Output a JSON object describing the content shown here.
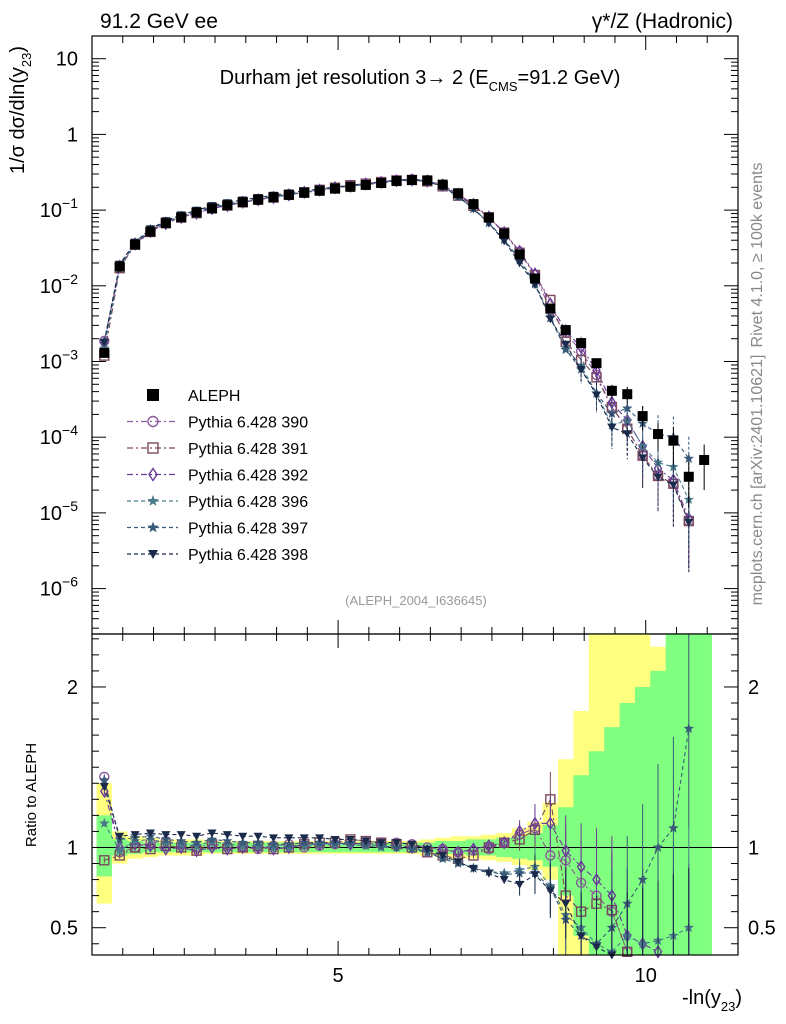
{
  "header": {
    "left": "91.2 GeV ee",
    "right": "γ*/Z (Hadronic)"
  },
  "side": {
    "top": "Rivet 4.1.0, ≥ 100k events",
    "bottom": "mcplots.cern.ch [arXiv:2401.10621]"
  },
  "chart_data": {
    "type": "scatter",
    "title": "Durham jet resolution 3→ 2 (E_CMS=91.2 GeV)",
    "title_main": "Durham jet resolution 3→ 2 (E",
    "title_sub": "CMS",
    "title_tail": "=91.2 GeV)",
    "watermark": "(ALEPH_2004_I636645)",
    "ylabel_main": "1/σ  dσ/dln(y",
    "ylabel_sub": "23",
    "ylabel_tail": ")",
    "ratio_ylabel": "Ratio to ALEPH",
    "xlabel_main": "-ln(y",
    "xlabel_sub": "23",
    "xlabel_tail": ")",
    "xlim": [
      1.0,
      11.5
    ],
    "ylim_log": [
      -6.6,
      1.3
    ],
    "ratio_ylim": [
      0.33,
      2.33
    ],
    "x_ticks": [
      {
        "v": 5,
        "label": "5"
      },
      {
        "v": 10,
        "label": "10"
      }
    ],
    "y_ticks": [
      {
        "e": 1,
        "base": "10",
        "exp": ""
      },
      {
        "e": 0,
        "base": "1",
        "exp": ""
      },
      {
        "e": -1,
        "base": "10",
        "exp": "−1"
      },
      {
        "e": -2,
        "base": "10",
        "exp": "−2"
      },
      {
        "e": -3,
        "base": "10",
        "exp": "−3"
      },
      {
        "e": -4,
        "base": "10",
        "exp": "−4"
      },
      {
        "e": -5,
        "base": "10",
        "exp": "−5"
      },
      {
        "e": -6,
        "base": "10",
        "exp": "−6"
      }
    ],
    "ratio_ticks": [
      {
        "v": 0.5,
        "label": "0.5"
      },
      {
        "v": 1,
        "label": "1"
      },
      {
        "v": 2,
        "label": "2"
      }
    ],
    "x": [
      1.2,
      1.45,
      1.7,
      1.95,
      2.2,
      2.45,
      2.7,
      2.95,
      3.2,
      3.45,
      3.7,
      3.95,
      4.2,
      4.45,
      4.7,
      4.95,
      5.2,
      5.45,
      5.7,
      5.95,
      6.2,
      6.45,
      6.7,
      6.95,
      7.2,
      7.45,
      7.7,
      7.95,
      8.2,
      8.45,
      8.7,
      8.95,
      9.2,
      9.45,
      9.7,
      9.95,
      10.2,
      10.45,
      10.7,
      10.95
    ],
    "data": [
      0.0013,
      0.018,
      0.035,
      0.052,
      0.067,
      0.08,
      0.093,
      0.105,
      0.116,
      0.127,
      0.137,
      0.148,
      0.159,
      0.169,
      0.18,
      0.192,
      0.203,
      0.215,
      0.228,
      0.242,
      0.25,
      0.247,
      0.217,
      0.167,
      0.12,
      0.08,
      0.049,
      0.026,
      0.0125,
      0.005,
      0.0026,
      0.00175,
      0.00095,
      0.00041,
      0.00037,
      0.00019,
      0.00011,
      9e-05,
      3e-05,
      5e-05
    ],
    "data_errors_rel": [
      0.1,
      0.04,
      0.03,
      0.03,
      0.03,
      0.03,
      0.02,
      0.02,
      0.02,
      0.02,
      0.02,
      0.02,
      0.02,
      0.02,
      0.02,
      0.02,
      0.02,
      0.02,
      0.02,
      0.02,
      0.02,
      0.02,
      0.02,
      0.03,
      0.03,
      0.03,
      0.04,
      0.05,
      0.06,
      0.08,
      0.1,
      0.12,
      0.15,
      0.2,
      0.25,
      0.35,
      0.4,
      0.5,
      0.6,
      0.6
    ],
    "mc_x": [
      1.2,
      1.45,
      1.7,
      1.95,
      2.2,
      2.45,
      2.7,
      2.95,
      3.2,
      3.45,
      3.7,
      3.95,
      4.2,
      4.45,
      4.7,
      4.95,
      5.2,
      5.45,
      5.7,
      5.95,
      6.2,
      6.45,
      6.7,
      6.95,
      7.2,
      7.45,
      7.7,
      7.95,
      8.2,
      8.45,
      8.7,
      8.95,
      9.2,
      9.45,
      9.7,
      9.95,
      10.2,
      10.45,
      10.7
    ],
    "series": [
      {
        "name": "Pythia 6.428 390",
        "marker": "circle",
        "color": "#8a5a9a",
        "dash": "6,3,2,3",
        "ratio": [
          1.44,
          0.97,
          1.0,
          1.03,
          1.04,
          1.02,
          1.0,
          1.02,
          1.01,
          1.0,
          0.99,
          1.01,
          1.02,
          1.0,
          1.01,
          1.02,
          1.03,
          1.02,
          1.03,
          1.03,
          1.02,
          1.0,
          0.99,
          0.97,
          0.98,
          0.99,
          1.03,
          1.08,
          1.12,
          0.95,
          0.92,
          0.78,
          0.7,
          0.6,
          0.35,
          0.3,
          0.28,
          0.27,
          0.26
        ]
      },
      {
        "name": "Pythia 6.428 391",
        "marker": "square",
        "color": "#7a4a5a",
        "dash": "6,3,2,3",
        "ratio": [
          0.92,
          0.95,
          1.0,
          0.99,
          1.01,
          1.0,
          0.98,
          1.02,
          0.99,
          1.0,
          1.01,
          0.99,
          1.0,
          1.02,
          1.03,
          1.03,
          1.05,
          1.04,
          1.03,
          1.02,
          1.0,
          0.97,
          0.95,
          0.93,
          0.95,
          1.0,
          1.03,
          1.05,
          1.11,
          1.3,
          0.7,
          0.6,
          0.65,
          0.61,
          0.35,
          0.3,
          0.28,
          0.27,
          0.26
        ]
      },
      {
        "name": "Pythia 6.428 392",
        "marker": "diamond",
        "color": "#6a3a9a",
        "dash": "6,3,2,3",
        "ratio": [
          1.35,
          1.0,
          1.02,
          1.01,
          0.99,
          1.0,
          0.98,
          1.0,
          0.99,
          1.0,
          1.0,
          0.99,
          1.0,
          1.02,
          1.02,
          1.03,
          1.02,
          1.03,
          1.02,
          1.01,
          1.0,
          0.98,
          0.99,
          0.97,
          0.99,
          1.01,
          1.03,
          1.1,
          1.15,
          1.15,
          0.98,
          0.88,
          0.8,
          0.7,
          0.45,
          0.4,
          0.35,
          0.3,
          0.28
        ]
      },
      {
        "name": "Pythia 6.428 396",
        "marker": "star",
        "color": "#4a7a8a",
        "dash": "4,3",
        "ratio": [
          1.15,
          0.98,
          1.04,
          1.05,
          1.03,
          1.02,
          1.01,
          1.04,
          1.02,
          1.01,
          1.01,
          1.0,
          1.0,
          1.01,
          1.02,
          1.02,
          1.02,
          1.01,
          1.0,
          1.0,
          0.99,
          0.97,
          0.94,
          0.91,
          0.87,
          0.85,
          0.84,
          0.86,
          0.88,
          0.76,
          0.58,
          0.5,
          0.4,
          0.35,
          0.45,
          0.4,
          0.42,
          0.45,
          0.5
        ]
      },
      {
        "name": "Pythia 6.428 397",
        "marker": "star",
        "color": "#3a5a7a",
        "dash": "4,3",
        "ratio": [
          1.42,
          1.05,
          1.06,
          1.07,
          1.05,
          1.04,
          1.03,
          1.05,
          1.04,
          1.03,
          1.03,
          1.02,
          1.02,
          1.03,
          1.03,
          1.03,
          1.03,
          1.02,
          1.01,
          1.0,
          0.99,
          0.97,
          0.93,
          0.9,
          0.87,
          0.85,
          0.83,
          0.84,
          0.84,
          0.75,
          0.55,
          0.45,
          0.4,
          0.5,
          0.65,
          0.8,
          1.0,
          1.12,
          1.74
        ]
      },
      {
        "name": "Pythia 6.428 398",
        "marker": "tri-down",
        "color": "#1a2a4a",
        "dash": "4,3",
        "ratio": [
          1.38,
          1.07,
          1.08,
          1.09,
          1.08,
          1.08,
          1.07,
          1.09,
          1.08,
          1.07,
          1.07,
          1.06,
          1.06,
          1.06,
          1.06,
          1.05,
          1.05,
          1.04,
          1.03,
          1.03,
          1.02,
          0.99,
          0.95,
          0.91,
          0.87,
          0.84,
          0.8,
          0.77,
          0.83,
          0.73,
          0.65,
          0.45,
          0.38,
          0.33,
          0.3,
          0.28,
          0.27,
          0.26,
          0.25
        ]
      }
    ],
    "band_yellow": [
      [
        1.2,
        0.65,
        1.4
      ],
      [
        1.45,
        0.9,
        1.1
      ],
      [
        1.7,
        0.93,
        1.07
      ],
      [
        1.95,
        0.94,
        1.06
      ],
      [
        2.2,
        0.95,
        1.05
      ],
      [
        2.45,
        0.95,
        1.05
      ],
      [
        2.7,
        0.95,
        1.05
      ],
      [
        2.95,
        0.96,
        1.04
      ],
      [
        3.2,
        0.96,
        1.04
      ],
      [
        3.45,
        0.96,
        1.04
      ],
      [
        3.7,
        0.96,
        1.04
      ],
      [
        3.95,
        0.96,
        1.04
      ],
      [
        4.2,
        0.96,
        1.04
      ],
      [
        4.45,
        0.96,
        1.04
      ],
      [
        4.7,
        0.96,
        1.04
      ],
      [
        4.95,
        0.96,
        1.04
      ],
      [
        5.2,
        0.96,
        1.04
      ],
      [
        5.45,
        0.96,
        1.04
      ],
      [
        5.7,
        0.96,
        1.04
      ],
      [
        5.95,
        0.96,
        1.04
      ],
      [
        6.2,
        0.96,
        1.04
      ],
      [
        6.45,
        0.95,
        1.05
      ],
      [
        6.7,
        0.94,
        1.06
      ],
      [
        6.95,
        0.93,
        1.07
      ],
      [
        7.2,
        0.93,
        1.07
      ],
      [
        7.45,
        0.92,
        1.08
      ],
      [
        7.7,
        0.91,
        1.09
      ],
      [
        7.95,
        0.89,
        1.12
      ],
      [
        8.2,
        0.86,
        1.16
      ],
      [
        8.45,
        0.8,
        1.28
      ],
      [
        8.7,
        0.33,
        1.55
      ],
      [
        8.95,
        0.33,
        1.85
      ],
      [
        9.2,
        0.33,
        2.33
      ],
      [
        9.45,
        0.33,
        2.33
      ],
      [
        9.7,
        0.33,
        2.33
      ],
      [
        9.95,
        0.33,
        2.33
      ],
      [
        10.2,
        0.33,
        2.25
      ],
      [
        10.45,
        0.33,
        2.33
      ],
      [
        10.7,
        0.33,
        2.33
      ],
      [
        10.95,
        0.33,
        2.33
      ]
    ],
    "band_green": [
      [
        1.2,
        0.82,
        1.2
      ],
      [
        1.45,
        0.95,
        1.05
      ],
      [
        1.7,
        0.96,
        1.04
      ],
      [
        1.95,
        0.97,
        1.03
      ],
      [
        2.2,
        0.97,
        1.03
      ],
      [
        2.45,
        0.97,
        1.03
      ],
      [
        2.7,
        0.97,
        1.03
      ],
      [
        2.95,
        0.97,
        1.03
      ],
      [
        3.2,
        0.97,
        1.03
      ],
      [
        3.45,
        0.97,
        1.03
      ],
      [
        3.7,
        0.97,
        1.03
      ],
      [
        3.95,
        0.97,
        1.03
      ],
      [
        4.2,
        0.97,
        1.03
      ],
      [
        4.45,
        0.97,
        1.03
      ],
      [
        4.7,
        0.97,
        1.03
      ],
      [
        4.95,
        0.97,
        1.03
      ],
      [
        5.2,
        0.97,
        1.03
      ],
      [
        5.45,
        0.97,
        1.03
      ],
      [
        5.7,
        0.97,
        1.03
      ],
      [
        5.95,
        0.97,
        1.03
      ],
      [
        6.2,
        0.97,
        1.03
      ],
      [
        6.45,
        0.97,
        1.03
      ],
      [
        6.7,
        0.96,
        1.04
      ],
      [
        6.95,
        0.96,
        1.04
      ],
      [
        7.2,
        0.95,
        1.05
      ],
      [
        7.45,
        0.95,
        1.05
      ],
      [
        7.7,
        0.94,
        1.06
      ],
      [
        7.95,
        0.93,
        1.07
      ],
      [
        8.2,
        0.92,
        1.09
      ],
      [
        8.45,
        0.88,
        1.14
      ],
      [
        8.7,
        0.7,
        1.25
      ],
      [
        8.95,
        0.45,
        1.45
      ],
      [
        9.2,
        0.33,
        1.6
      ],
      [
        9.45,
        0.33,
        1.75
      ],
      [
        9.7,
        0.33,
        1.9
      ],
      [
        9.95,
        0.33,
        2.0
      ],
      [
        10.2,
        0.33,
        2.1
      ],
      [
        10.45,
        0.33,
        2.33
      ],
      [
        10.7,
        0.33,
        2.33
      ],
      [
        10.95,
        0.33,
        2.33
      ]
    ],
    "legend": [
      {
        "name": "ALEPH",
        "marker": "fsquare",
        "color": "#000000"
      },
      {
        "name": "Pythia 6.428 390",
        "marker": "circle",
        "color": "#8a5a9a"
      },
      {
        "name": "Pythia 6.428 391",
        "marker": "square",
        "color": "#7a4a5a"
      },
      {
        "name": "Pythia 6.428 392",
        "marker": "diamond",
        "color": "#6a3a9a"
      },
      {
        "name": "Pythia 6.428 396",
        "marker": "star",
        "color": "#4a7a8a"
      },
      {
        "name": "Pythia 6.428 397",
        "marker": "star",
        "color": "#3a5a7a"
      },
      {
        "name": "Pythia 6.428 398",
        "marker": "tri-down",
        "color": "#1a2a4a"
      }
    ],
    "colors": {
      "band_yellow": "#ffff80",
      "band_green": "#80ff80",
      "data": "#000000"
    }
  }
}
